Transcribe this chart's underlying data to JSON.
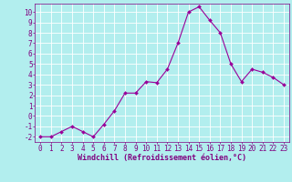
{
  "x": [
    0,
    1,
    2,
    3,
    4,
    5,
    6,
    7,
    8,
    9,
    10,
    11,
    12,
    13,
    14,
    15,
    16,
    17,
    18,
    19,
    20,
    21,
    22,
    23
  ],
  "y": [
    -2,
    -2,
    -1.5,
    -1,
    -1.5,
    -2,
    -0.8,
    0.5,
    2.2,
    2.2,
    3.3,
    3.2,
    4.5,
    7.0,
    10.0,
    10.5,
    9.2,
    8.0,
    5.0,
    3.3,
    4.5,
    4.2,
    3.7,
    3.0
  ],
  "ylim_min": -2.5,
  "ylim_max": 10.8,
  "yticks": [
    -2,
    -1,
    0,
    1,
    2,
    3,
    4,
    5,
    6,
    7,
    8,
    9,
    10
  ],
  "xticks": [
    0,
    1,
    2,
    3,
    4,
    5,
    6,
    7,
    8,
    9,
    10,
    11,
    12,
    13,
    14,
    15,
    16,
    17,
    18,
    19,
    20,
    21,
    22,
    23
  ],
  "xlabel": "Windchill (Refroidissement éolien,°C)",
  "line_color": "#990099",
  "marker_color": "#990099",
  "bg_color": "#b2eeee",
  "grid_color": "#ffffff",
  "tick_color": "#800080",
  "label_color": "#800080",
  "tick_fontsize": 5.5,
  "xlabel_fontsize": 6.0
}
